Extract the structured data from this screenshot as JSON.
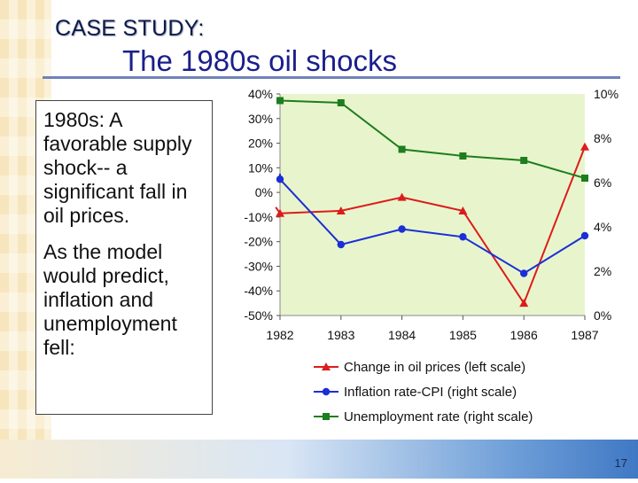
{
  "slide": {
    "label": "CASE STUDY:",
    "title": "The 1980s oil shocks",
    "number": "17"
  },
  "text_box": {
    "paragraph1": "1980s: A favorable supply shock-- a significant fall in oil prices.",
    "paragraph2": "As the model would predict, inflation and unemployment fell:"
  },
  "chart_data": {
    "type": "line",
    "x": [
      1982,
      1983,
      1984,
      1985,
      1986,
      1987
    ],
    "x_tick_labels": [
      "1982",
      "1983",
      "1984",
      "1985",
      "1986",
      "1987"
    ],
    "left_axis": {
      "ylim": [
        -50,
        40
      ],
      "tick_values": [
        40,
        30,
        20,
        10,
        0,
        -10,
        -20,
        -30,
        -40,
        -50
      ],
      "tick_labels": [
        "40%",
        "30%",
        "20%",
        "10%",
        "0%",
        "-10%",
        "-20%",
        "-30%",
        "-40%",
        "-50%"
      ]
    },
    "right_axis": {
      "ylim": [
        0,
        10
      ],
      "tick_values": [
        10,
        8,
        6,
        4,
        2,
        0
      ],
      "tick_labels": [
        "10%",
        "8%",
        "6%",
        "4%",
        "2%",
        "0%"
      ]
    },
    "series": [
      {
        "name": "Change in oil prices (left scale)",
        "axis": "left",
        "color": "#dd1c1c",
        "marker": "triangle",
        "x_start": 1981.93,
        "values": [
          -8.5,
          -7.5,
          -2,
          -7.5,
          -45,
          18.5
        ],
        "start_value": -6
      },
      {
        "name": "Inflation rate-CPI (right scale)",
        "axis": "right",
        "color": "#1b2fd6",
        "marker": "circle",
        "values": [
          6.15,
          3.2,
          3.9,
          3.55,
          1.9,
          3.6
        ],
        "start_value": 6.4
      },
      {
        "name": "Unemployment rate (right scale)",
        "axis": "right",
        "color": "#1e7d1e",
        "marker": "square",
        "values": [
          9.7,
          9.6,
          7.5,
          7.2,
          7.0,
          6.2
        ]
      }
    ],
    "plot_background": "#e8f5cc"
  }
}
